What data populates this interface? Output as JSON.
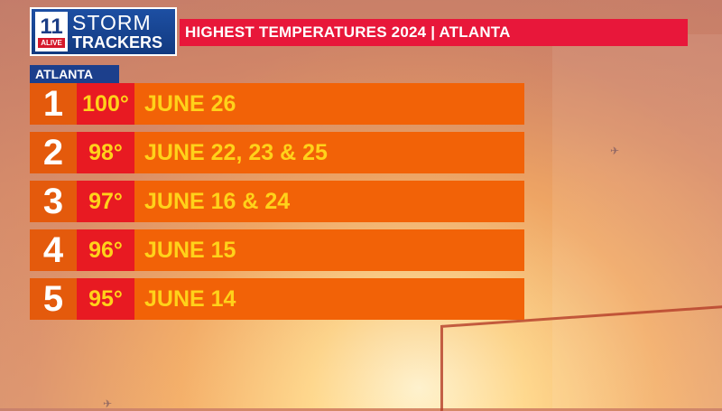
{
  "logo": {
    "number": "11",
    "alive": "ALIVE",
    "storm": "STORM",
    "trackers": "TRACKERS"
  },
  "title": "HIGHEST TEMPERATURES 2024 | ATLANTA",
  "location_tab": "ATLANTA",
  "rows": [
    {
      "rank": "1",
      "temp": "100°",
      "date": "JUNE 26"
    },
    {
      "rank": "2",
      "temp": "98°",
      "date": "JUNE 22, 23 & 25"
    },
    {
      "rank": "3",
      "temp": "97°",
      "date": "JUNE 16 & 24"
    },
    {
      "rank": "4",
      "temp": "96°",
      "date": "JUNE 15"
    },
    {
      "rank": "5",
      "temp": "95°",
      "date": "JUNE 14"
    }
  ],
  "colors": {
    "title_bar": "#e8173a",
    "location_tab": "#1c3f8c",
    "rank_cell": "#e45a0c",
    "temp_cell": "#e81a22",
    "date_cell": "#f26207",
    "highlight_text": "#ffd21a"
  },
  "icons": [
    "airplane-icon"
  ]
}
